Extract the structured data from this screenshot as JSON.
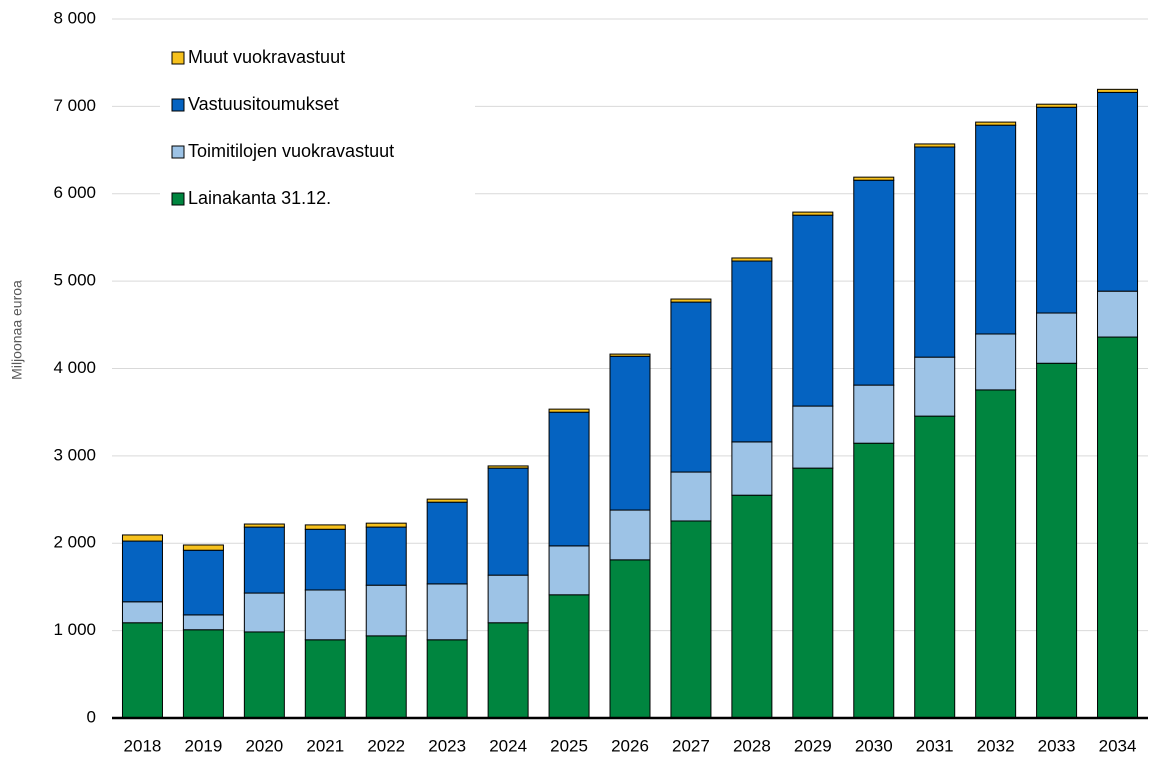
{
  "chart_data": {
    "type": "stacked_bar",
    "y_label": "Miljoonaa euroa",
    "categories": [
      "2018",
      "2019",
      "2020",
      "2021",
      "2022",
      "2023",
      "2024",
      "2025",
      "2026",
      "2027",
      "2028",
      "2029",
      "2030",
      "2031",
      "2032",
      "2033",
      "2034"
    ],
    "series": [
      {
        "name": "Lainakanta 31.12.",
        "color": "#00853f",
        "values": [
          1090,
          1010,
          985,
          895,
          940,
          895,
          1090,
          1410,
          1810,
          2255,
          2550,
          2860,
          3145,
          3455,
          3755,
          4060,
          4360
        ]
      },
      {
        "name": "Toimitilojen vuokravastuut",
        "color": "#9dc3e6",
        "values": [
          240,
          170,
          445,
          570,
          580,
          640,
          545,
          560,
          570,
          560,
          610,
          710,
          665,
          675,
          640,
          575,
          525
        ]
      },
      {
        "name": "Vastuusitoumukset",
        "color": "#0563c1",
        "values": [
          695,
          740,
          755,
          695,
          665,
          935,
          1225,
          1530,
          1760,
          1945,
          2070,
          2185,
          2345,
          2405,
          2390,
          2355,
          2275
        ]
      },
      {
        "name": "Muut vuokravastuut",
        "color": "#f6c11d",
        "values": [
          70,
          60,
          35,
          50,
          45,
          35,
          25,
          35,
          25,
          35,
          35,
          35,
          35,
          35,
          35,
          35,
          35
        ]
      }
    ],
    "ylim": [
      0,
      8000
    ],
    "yticks": [
      0,
      {
        "value": 1000,
        "label": "1 000"
      },
      {
        "value": 2000,
        "label": "2 000"
      },
      {
        "value": 3000,
        "label": "3 000"
      },
      {
        "value": 4000,
        "label": "4 000"
      },
      {
        "value": 5000,
        "label": "5 000"
      },
      {
        "value": 6000,
        "label": "6 000"
      },
      {
        "value": 7000,
        "label": "7 000"
      },
      {
        "value": 8000,
        "label": "8 000"
      }
    ],
    "grid": true,
    "legend": "upper left"
  }
}
